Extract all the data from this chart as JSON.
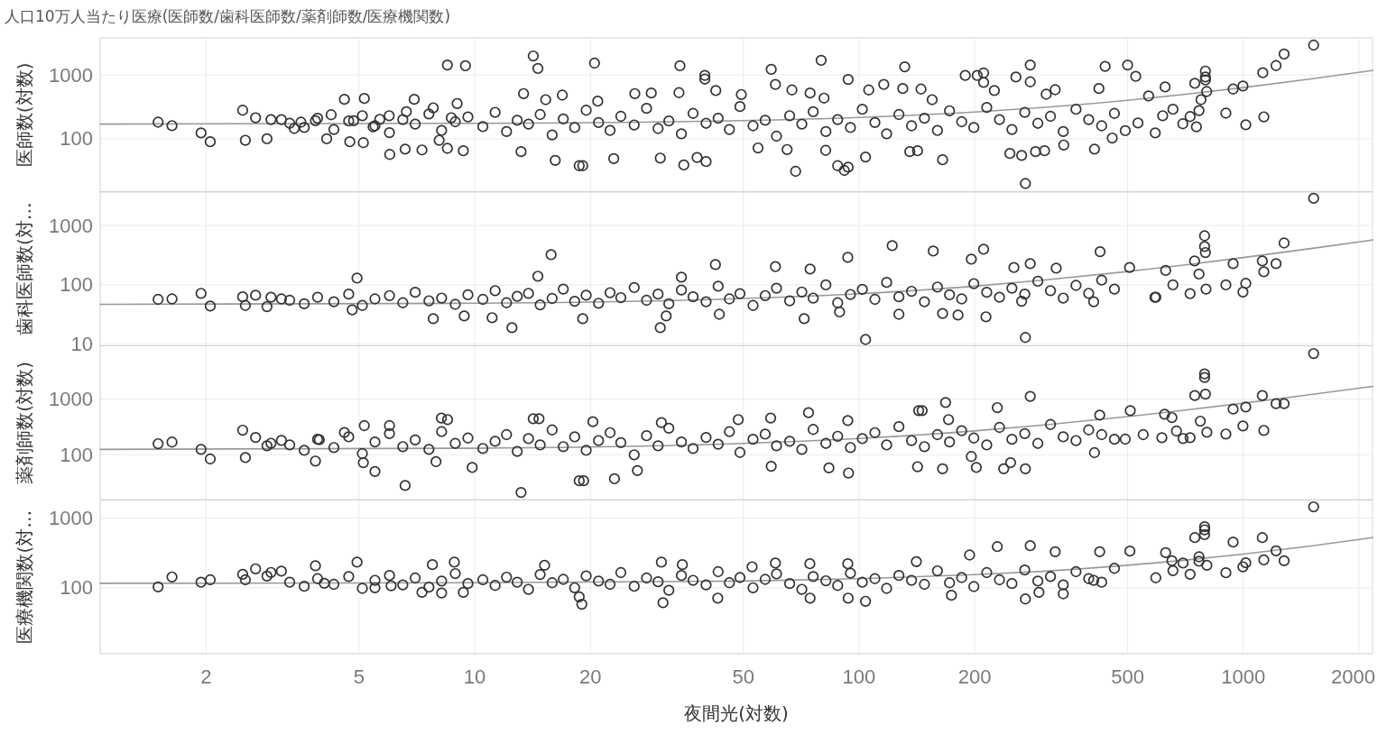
{
  "chart_data": [
    {
      "type": "scatter",
      "title": "人口10万人当たり医療(医師数/歯科医師数/薬剤師数/医療機関数)",
      "ylabel": "医師数(対数)",
      "log": "xy",
      "xlim": [
        1.06,
        2170
      ],
      "xticks": [
        2,
        5,
        10,
        20,
        50,
        100,
        200,
        500,
        1000,
        2000
      ],
      "ylim": [
        14.8,
        3800
      ],
      "yticks": [
        100,
        1000
      ],
      "grid": true,
      "tick_labels": "y",
      "series": [
        {
          "type": "line",
          "color": "#999999",
          "x": [
            1.06,
            10,
            50,
            100,
            200,
            300,
            500,
            700,
            1000,
            1500,
            2170
          ],
          "values": [
            170,
            175,
            193,
            216,
            263,
            309,
            400,
            494,
            633,
            865,
            1175
          ]
        },
        {
          "marker": "circle",
          "color": "#333333",
          "x": [
            1.5,
            1.63,
            1.94,
            2.05,
            2.49,
            2.53,
            2.69,
            2.88,
            2.95,
            3.14,
            3.39,
            3.53,
            3.85,
            4.12,
            4.23,
            4.58,
            4.73,
            4.84,
            5.16,
            5.13,
            5.44,
            5.66,
            6.01,
            5.99,
            6.59,
            6.96,
            6.64,
            7.29,
            7.8,
            8.08,
            8.49,
            8.49,
            9.0,
            9.46,
            8.69,
            14.2,
            14.6,
            20.5,
            34.2,
            39.7,
            39.7,
            59.1,
            79.7,
            93.7,
            131.5,
            13.4,
            16.9,
            15.3,
            20.9,
            26.1,
            28.8,
            34.0,
            42.4,
            49.4,
            60.6,
            66.9,
            74.6,
            81.1,
            106,
            116,
            130,
            18.7,
            19.1,
            35.0,
            40.0,
            68.4,
            88.0,
            91.6,
            93.7,
            16.2,
            23.0,
            30.4,
            37.9,
            9.34,
            13.2,
            65.0,
            81.9,
            135.6,
            54.6,
            104,
            189,
            203,
            211,
            211,
            256,
            279,
            279,
            437,
            500,
            525,
            797,
            797,
            797,
            1124,
            1217,
            1277,
            1524,
            626,
            748,
            941,
            998,
            901,
            1015,
            1131,
            803,
            776,
            767,
            755,
            727,
            696,
            656,
            617,
            590,
            567,
            532,
            493,
            456,
            410,
            421,
            271,
            165,
            265,
            288,
            225,
            307,
            324,
            145,
            155,
            142,
            247,
            304,
            341,
            3.3,
            3.6,
            3.9,
            4.3,
            4.7,
            5.1,
            5.5,
            6.0,
            6.5,
            7.0,
            7.6,
            8.2,
            8.9,
            9.6,
            10.5,
            11.3,
            12.1,
            12.9,
            13.8,
            14.8,
            15.9,
            17.0,
            18.2,
            19.5,
            21,
            22.5,
            24,
            26,
            28,
            30,
            32,
            34.5,
            37,
            40,
            43,
            46,
            49,
            53,
            57,
            61,
            66,
            71,
            76,
            82,
            88,
            95,
            102,
            110,
            118,
            127,
            137,
            148,
            160,
            172,
            185,
            199,
            215,
            232,
            250,
            270,
            292,
            315,
            340,
            367,
            396,
            428,
            462
          ],
          "values": [
            182,
            161,
            124,
            90,
            280,
            95,
            214,
            100,
            200,
            200,
            145,
            182,
            192,
            100,
            238,
            415,
            90,
            192,
            428,
            87,
            154,
            202,
            57,
            230,
            69,
            415,
            266,
            67,
            306,
            95,
            1430,
            71,
            357,
            1390,
            214,
            1980,
            1260,
            1530,
            1390,
            980,
            860,
            1220,
            1690,
            850,
            1340,
            510,
            483,
            410,
            388,
            510,
            521,
            528,
            569,
            494,
            708,
            582,
            521,
            434,
            582,
            708,
            613,
            38,
            38,
            39,
            44,
            31,
            38,
            32,
            36,
            46,
            49,
            50,
            51,
            65,
            63,
            68,
            66,
            63,
            72,
            52,
            980,
            980,
            1070,
            763,
            928,
            1430,
            780,
            1360,
            1430,
            949,
            1150,
            928,
            833,
            1080,
            1400,
            2120,
            2930,
            648,
            738,
            601,
            670,
            252,
            166,
            221,
            550,
            410,
            277,
            154,
            223,
            172,
            290,
            230,
            124,
            468,
            177,
            134,
            103,
            69,
            613,
            20,
            47,
            55,
            63,
            569,
            499,
            587,
            601,
            410,
            65,
            59,
            65,
            80,
            175,
            150,
            210,
            140,
            190,
            230,
            160,
            125,
            200,
            170,
            245,
            135,
            185,
            220,
            155,
            260,
            130,
            195,
            170,
            240,
            115,
            205,
            150,
            280,
            180,
            135,
            225,
            165,
            300,
            145,
            190,
            120,
            250,
            175,
            210,
            140,
            320,
            160,
            195,
            110,
            230,
            170,
            265,
            130,
            200,
            150,
            290,
            180,
            120,
            240,
            160,
            210,
            135,
            275,
            185,
            150,
            310,
            200,
            140,
            260,
            175,
            225,
            130,
            290,
            200,
            160,
            250
          ]
        }
      ]
    },
    {
      "type": "scatter",
      "ylabel": "歯科医師数(対…",
      "log": "xy",
      "xlim": [
        1.06,
        2170
      ],
      "xticks": [
        2,
        5,
        10,
        20,
        50,
        100,
        200,
        500,
        1000,
        2000
      ],
      "ylim": [
        9.4,
        3700
      ],
      "yticks": [
        10,
        100,
        1000
      ],
      "grid": true,
      "tick_labels": "y",
      "series": [
        {
          "type": "line",
          "color": "#999999",
          "x": [
            1.06,
            10,
            50,
            100,
            200,
            300,
            500,
            700,
            1000,
            1500,
            2170
          ],
          "values": [
            47,
            49,
            59,
            71,
            95,
            120,
            168,
            216,
            289,
            410,
            572
          ]
        },
        {
          "marker": "circle",
          "color": "#333333",
          "x": [
            1.5,
            1.63,
            1.94,
            2.05,
            2.49,
            2.53,
            2.69,
            2.88,
            2.95,
            3.14,
            4.94,
            7.8,
            4.8,
            9.39,
            15.8,
            14.6,
            42.3,
            60.6,
            74.6,
            93.5,
            122,
            34.5,
            12.5,
            30.4,
            104,
            11.1,
            19.1,
            31.5,
            43.3,
            72,
            89,
            127,
            1524,
            793,
            793,
            797,
            1277,
            747,
            941,
            1121,
            1217,
            1131,
            1015,
            998,
            901,
            800,
            767,
            628,
            727,
            656,
            592,
            506,
            424,
            271,
            211,
            156,
            196,
            279,
            253,
            326,
            165,
            181,
            214,
            265,
            408,
            589,
            3.3,
            3.6,
            3.9,
            4.3,
            4.7,
            5.1,
            5.5,
            6.0,
            6.5,
            7.0,
            7.6,
            8.2,
            8.9,
            9.6,
            10.5,
            11.3,
            12.1,
            12.9,
            13.8,
            14.8,
            15.9,
            17.0,
            18.2,
            19.5,
            21,
            22.5,
            24,
            26,
            28,
            30,
            32,
            34.5,
            37,
            40,
            43,
            46,
            49,
            53,
            57,
            61,
            66,
            71,
            76,
            82,
            88,
            95,
            102,
            110,
            118,
            127,
            137,
            148,
            160,
            172,
            185,
            199,
            215,
            232,
            250,
            270,
            292,
            315,
            340,
            367,
            396,
            428,
            462
          ],
          "values": [
            57,
            58,
            72,
            44,
            63,
            45,
            67,
            43,
            62,
            58,
            130,
            27,
            38,
            30,
            323,
            140,
            220,
            203,
            185,
            291,
            458,
            135,
            19,
            19,
            12,
            28,
            27,
            30,
            32,
            27,
            35,
            32,
            2880,
            672,
            442,
            351,
            508,
            253,
            228,
            253,
            228,
            166,
            106,
            76,
            100,
            85,
            152,
            175,
            71,
            100,
            62,
            196,
            363,
            13,
            398,
            371,
            271,
            228,
            196,
            191,
            33,
            31,
            29,
            53,
            52,
            62,
            55,
            48,
            62,
            52,
            70,
            45,
            58,
            66,
            50,
            75,
            54,
            60,
            47,
            68,
            57,
            80,
            50,
            64,
            72,
            46,
            59,
            85,
            53,
            67,
            49,
            74,
            61,
            90,
            55,
            70,
            48,
            82,
            63,
            52,
            95,
            58,
            71,
            45,
            66,
            88,
            54,
            76,
            60,
            100,
            50,
            69,
            84,
            57,
            110,
            63,
            78,
            52,
            92,
            68,
            58,
            105,
            75,
            62,
            88,
            70,
            115,
            80,
            60,
            98,
            72,
            120,
            85
          ]
        }
      ]
    },
    {
      "type": "scatter",
      "ylabel": "薬剤師数(対数)",
      "log": "xy",
      "xlim": [
        1.06,
        2170
      ],
      "xticks": [
        2,
        5,
        10,
        20,
        50,
        100,
        200,
        500,
        1000,
        2000
      ],
      "ylim": [
        15.5,
        9100
      ],
      "yticks": [
        100,
        1000
      ],
      "grid": true,
      "tick_labels": "y",
      "series": [
        {
          "type": "line",
          "color": "#999999",
          "x": [
            1.06,
            10,
            50,
            100,
            200,
            300,
            500,
            700,
            1000,
            1500,
            2170
          ],
          "values": [
            125,
            131,
            160,
            196,
            268,
            341,
            485,
            629,
            846,
            1210,
            1690
          ]
        },
        {
          "marker": "circle",
          "color": "#333333",
          "x": [
            1.5,
            1.63,
            1.94,
            2.05,
            2.49,
            2.53,
            2.69,
            2.88,
            2.95,
            3.14,
            8.19,
            8.5,
            5.16,
            6.0,
            6.59,
            5.5,
            3.85,
            5.13,
            4.58,
            3.94,
            7.93,
            13.2,
            18.7,
            19.2,
            23.1,
            59.1,
            83.5,
            93.9,
            9.85,
            26.5,
            14.2,
            14.7,
            20.3,
            30.6,
            48.5,
            58.9,
            73.9,
            93.5,
            143,
            1524,
            793,
            793,
            748,
            797,
            1121,
            1217,
            1277,
            941,
            1015,
            998,
            901,
            1131,
            624,
            652,
            773,
            804,
            727,
            697,
            670,
            614,
            549,
            508,
            493,
            423,
            410,
            279,
            229,
            168,
            146,
            171,
            142,
            165,
            202,
            238,
            271,
            196,
            248,
            3.3,
            3.6,
            3.9,
            4.3,
            4.7,
            5.1,
            5.5,
            6.0,
            6.5,
            7.0,
            7.6,
            8.2,
            8.9,
            9.6,
            10.5,
            11.3,
            12.1,
            12.9,
            13.8,
            14.8,
            15.9,
            17.0,
            18.2,
            19.5,
            21,
            22.5,
            24,
            26,
            28,
            30,
            32,
            34.5,
            37,
            40,
            43,
            46,
            49,
            53,
            57,
            61,
            66,
            71,
            76,
            82,
            88,
            95,
            102,
            110,
            118,
            127,
            137,
            148,
            160,
            172,
            185,
            199,
            215,
            232,
            250,
            270,
            292,
            315,
            340,
            367,
            396,
            428,
            462
          ],
          "values": [
            158,
            169,
            125,
            84,
            277,
            89,
            205,
            145,
            161,
            181,
            457,
            429,
            334,
            334,
            28,
            50,
            77,
            72,
            251,
            186,
            75,
            21,
            34,
            34,
            37,
            62,
            58,
            47,
            59,
            52,
            445,
            445,
            393,
            379,
            429,
            457,
            571,
            413,
            622,
            6610,
            2840,
            2450,
            1160,
            1230,
            1160,
            830,
            830,
            663,
            723,
            330,
            236,
            274,
            536,
            467,
            402,
            254,
            203,
            196,
            267,
            203,
            230,
            622,
            191,
            516,
            109,
            1120,
            704,
            871,
            622,
            429,
            61,
            56,
            59,
            56,
            56,
            93,
            72,
            150,
            120,
            190,
            135,
            210,
            105,
            170,
            240,
            140,
            185,
            125,
            260,
            160,
            200,
            130,
            175,
            230,
            115,
            195,
            150,
            280,
            140,
            210,
            120,
            180,
            250,
            165,
            100,
            220,
            145,
            300,
            170,
            130,
            205,
            155,
            260,
            110,
            190,
            235,
            145,
            175,
            125,
            285,
            160,
            215,
            135,
            195,
            250,
            150,
            320,
            180,
            140,
            230,
            170,
            270,
            200,
            150,
            310,
            190,
            240,
            160,
            350,
            210,
            180,
            280,
            230,
            190
          ]
        }
      ]
    },
    {
      "type": "scatter",
      "ylabel": "医療機関数(対…",
      "xlabel": "夜間光(対数)",
      "log": "xy",
      "xlim": [
        1.06,
        2170
      ],
      "xticks": [
        2,
        5,
        10,
        20,
        50,
        100,
        200,
        500,
        1000,
        2000
      ],
      "ylim": [
        11.3,
        1830
      ],
      "yticks": [
        100,
        1000
      ],
      "grid": true,
      "series": [
        {
          "type": "line",
          "color": "#999999",
          "x": [
            1.06,
            10,
            50,
            100,
            200,
            300,
            500,
            700,
            1000,
            1500,
            2170
          ],
          "values": [
            116,
            118,
            125,
            135,
            154,
            172,
            210,
            248,
            304,
            398,
            525
          ]
        },
        {
          "marker": "circle",
          "color": "#333333",
          "x": [
            1.5,
            1.63,
            1.94,
            2.05,
            2.49,
            2.53,
            2.69,
            2.88,
            2.95,
            3.14,
            4.94,
            8.85,
            7.76,
            3.85,
            7.29,
            5.5,
            8.2,
            9.34,
            4.06,
            6.06,
            19.0,
            18.7,
            30.9,
            42.9,
            74.6,
            93.7,
            104,
            30.6,
            74.5,
            93.5,
            60.6,
            34.7,
            15.2,
            52.7,
            1524,
            793,
            793,
            793,
            748,
            941,
            1121,
            1217,
            1277,
            1131,
            998,
            1015,
            901,
            804,
            767,
            767,
            727,
            628,
            652,
            697,
            656,
            592,
            507,
            423,
            408,
            279,
            229,
            194,
            324,
            141,
            271,
            174,
            294,
            340,
            3.3,
            3.6,
            3.9,
            4.3,
            4.7,
            5.1,
            5.5,
            6.0,
            6.5,
            7.0,
            7.6,
            8.2,
            8.9,
            9.6,
            10.5,
            11.3,
            12.1,
            12.9,
            13.8,
            14.8,
            15.9,
            17.0,
            18.2,
            19.5,
            21,
            22.5,
            24,
            26,
            28,
            30,
            32,
            34.5,
            37,
            40,
            43,
            46,
            49,
            53,
            57,
            61,
            66,
            71,
            76,
            82,
            88,
            95,
            102,
            110,
            118,
            127,
            137,
            148,
            160,
            172,
            185,
            199,
            215,
            232,
            250,
            270,
            292,
            315,
            340,
            367,
            396,
            428,
            462
          ],
          "values": [
            103,
            143,
            120,
            130,
            156,
            130,
            187,
            147,
            166,
            173,
            233,
            233,
            215,
            207,
            86,
            100,
            84,
            86,
            116,
            107,
            58,
            74,
            61,
            71,
            71,
            71,
            64,
            233,
            221,
            221,
            226,
            215,
            210,
            200,
            1450,
            750,
            679,
            578,
            524,
            452,
            524,
            339,
            244,
            251,
            200,
            228,
            164,
            210,
            278,
            240,
            156,
            319,
            244,
            226,
            176,
            139,
            336,
            329,
            128,
            401,
            389,
            295,
            329,
            237,
            69,
            78,
            86,
            82,
            120,
            105,
            135,
            112,
            145,
            98,
            128,
            150,
            110,
            138,
            102,
            125,
            160,
            115,
            130,
            108,
            142,
            120,
            95,
            155,
            118,
            132,
            100,
            148,
            125,
            112,
            165,
            105,
            138,
            122,
            92,
            150,
            128,
            110,
            170,
            118,
            140,
            100,
            132,
            158,
            115,
            95,
            145,
            126,
            108,
            162,
            120,
            135,
            98,
            150,
            128,
            112,
            175,
            118,
            140,
            104,
            165,
            130,
            115,
            180,
            125,
            145,
            110,
            170,
            135,
            120,
            190
          ]
        }
      ]
    }
  ]
}
